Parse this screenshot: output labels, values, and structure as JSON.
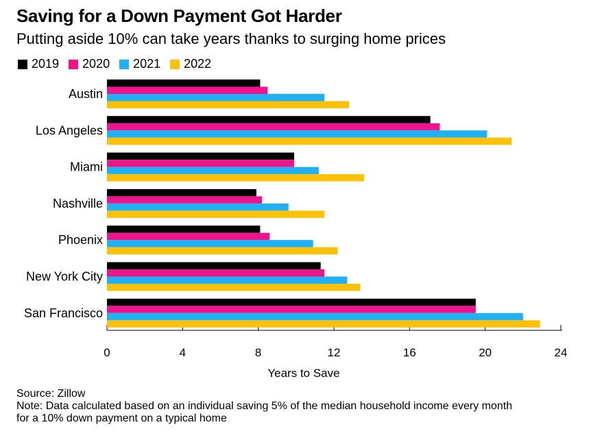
{
  "chart_data": {
    "type": "bar",
    "orientation": "horizontal",
    "title": "Saving for a Down Payment Got Harder",
    "subtitle": "Putting aside 10% can take years thanks to surging home prices",
    "categories": [
      "Austin",
      "Los Angeles",
      "Miami",
      "Nashville",
      "Phoenix",
      "New York City",
      "San Francisco"
    ],
    "series": [
      {
        "name": "2019",
        "color": "#000000",
        "values": [
          8.1,
          17.1,
          9.9,
          7.9,
          8.1,
          11.3,
          19.5
        ]
      },
      {
        "name": "2020",
        "color": "#f0148c",
        "values": [
          8.5,
          17.6,
          9.9,
          8.2,
          8.6,
          11.5,
          19.5
        ]
      },
      {
        "name": "2021",
        "color": "#1fb0f5",
        "values": [
          11.5,
          20.1,
          11.2,
          9.6,
          10.9,
          12.7,
          22.0
        ]
      },
      {
        "name": "2022",
        "color": "#fac108",
        "values": [
          12.8,
          21.4,
          13.6,
          11.5,
          12.2,
          13.4,
          22.9
        ]
      }
    ],
    "xlabel": "Years to Save",
    "xlim": [
      0,
      24
    ],
    "xticks": [
      0,
      4,
      8,
      12,
      16,
      20,
      24
    ],
    "legend_position": "top-left"
  },
  "footer": {
    "source": "Source: Zillow",
    "note_line1": "Note: Data calculated based on an individual saving 5% of the median household income every month",
    "note_line2": "for a 10% down payment on a typical home"
  }
}
